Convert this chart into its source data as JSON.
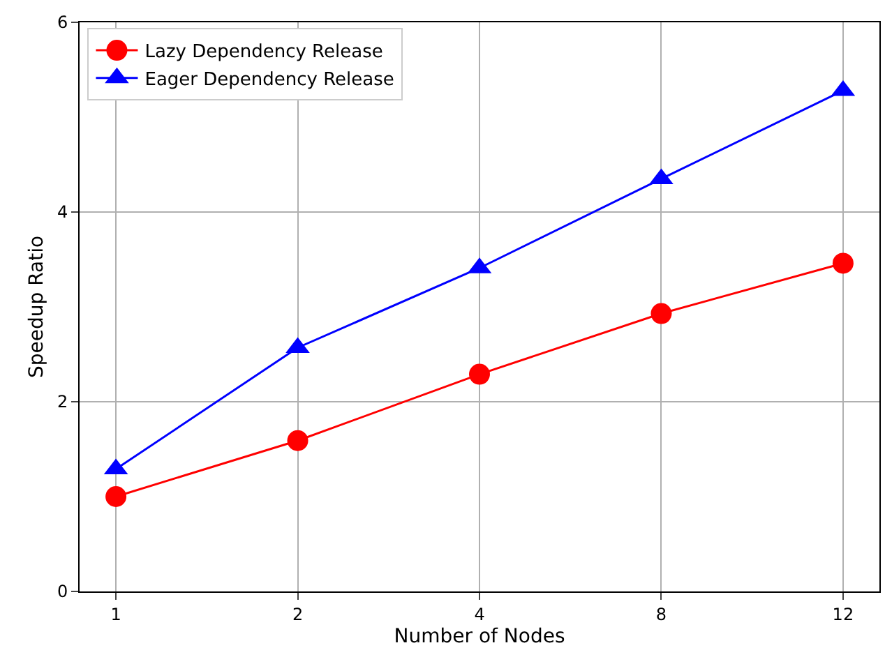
{
  "chart_data": {
    "type": "line",
    "xlabel": "Number of Nodes",
    "ylabel": "Speedup Ratio",
    "categories": [
      "1",
      "2",
      "4",
      "8",
      "12"
    ],
    "series": [
      {
        "name": "Lazy Dependency Release",
        "color": "#ff0000",
        "marker": "circle",
        "values": [
          1.0,
          1.59,
          2.29,
          2.93,
          3.46
        ]
      },
      {
        "name": "Eager Dependency Release",
        "color": "#0000ff",
        "marker": "triangle",
        "values": [
          1.29,
          2.57,
          3.41,
          4.35,
          5.28
        ]
      }
    ],
    "ylim": [
      0,
      6
    ],
    "yticks": [
      0,
      2,
      4,
      6
    ],
    "grid": true,
    "legend": "top left",
    "line_style": "solid"
  }
}
